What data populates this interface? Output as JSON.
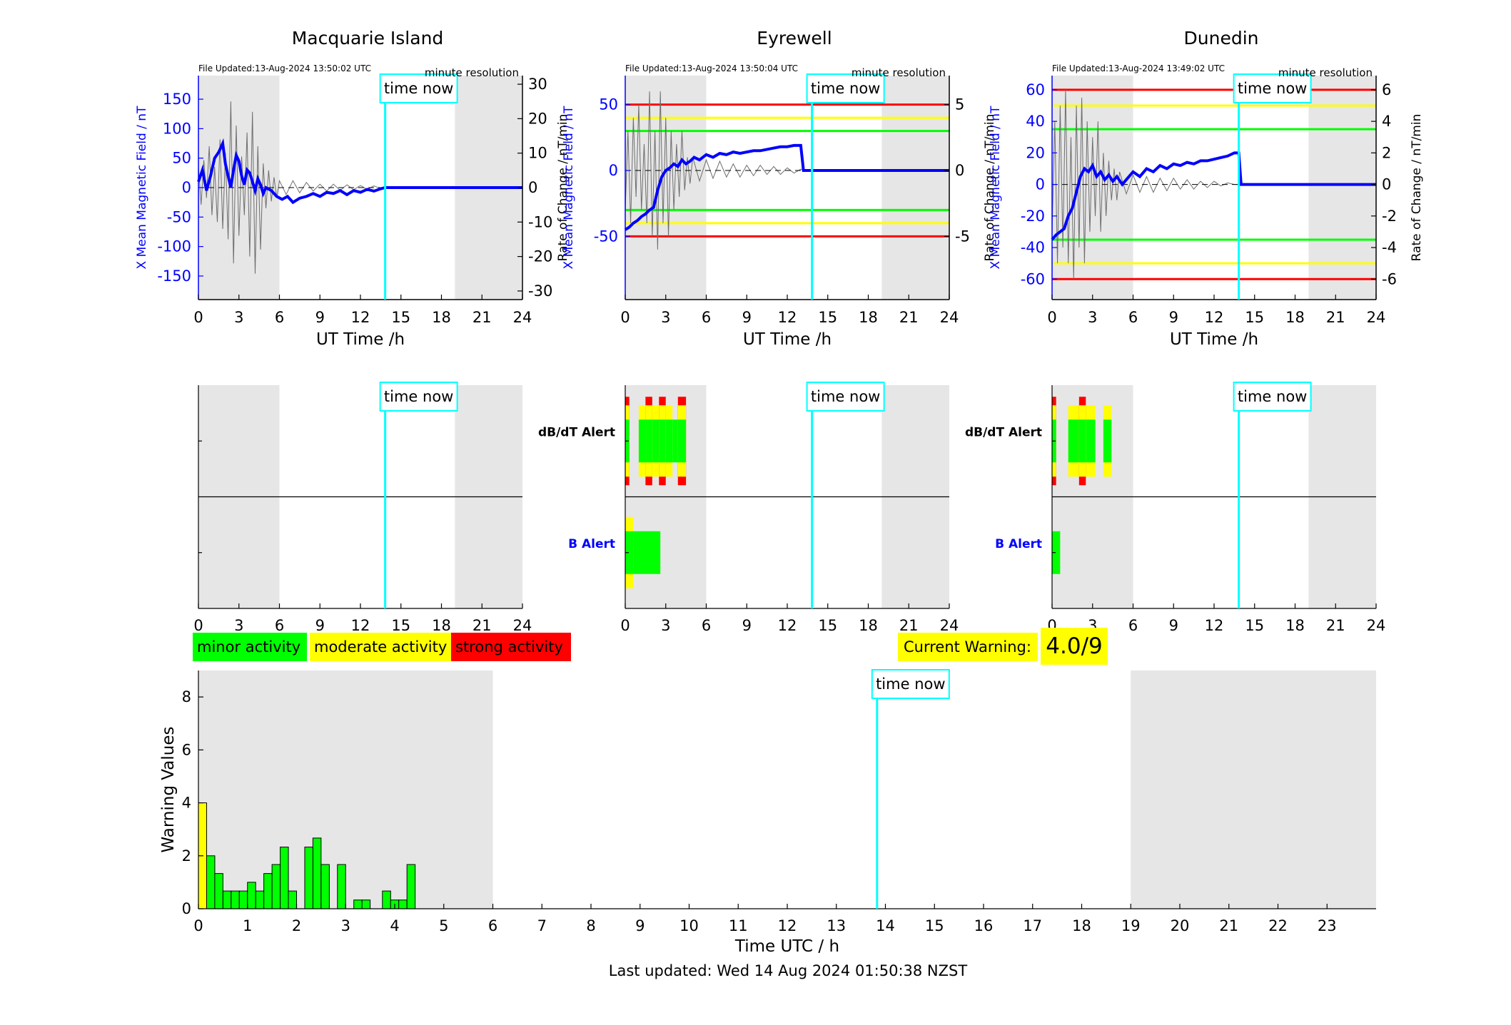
{
  "colors": {
    "field": "#0000ff",
    "rate": "#6e6e6e",
    "minor": "#00ff00",
    "moderate": "#ffff00",
    "strong": "#ff0000",
    "time_now": "#00ffff",
    "shade": "#e6e6e6"
  },
  "time_now_label": "time now",
  "legend": {
    "minor": "minor activity",
    "moderate": "moderate activity",
    "strong": "strong activity"
  },
  "current_warning": {
    "label": "Current Warning:",
    "value": "4.0/9"
  },
  "last_updated": "Last updated: Wed 14 Aug 2024 01:50:38 NZST",
  "chart_data": [
    {
      "type": "line",
      "title": "Macquarie Island",
      "file_updated": "File Updated:13-Aug-2024 13:50:02 UTC",
      "resolution": "minute resolution",
      "xlabel": "UT Time /h",
      "ylabel_left": "X Mean Magnetic Field / nT",
      "ylabel_right": "Rate of Change / nT/min",
      "xlim": [
        0,
        24
      ],
      "xticks": [
        0,
        3,
        6,
        9,
        12,
        15,
        18,
        21,
        24
      ],
      "ylim_left": [
        -190,
        190
      ],
      "yticks_left": [
        -150,
        -100,
        -50,
        0,
        50,
        100,
        150
      ],
      "ylim_right": [
        -32.5,
        32.5
      ],
      "yticks_right": [
        -30,
        -20,
        -10,
        0,
        10,
        20,
        30
      ],
      "time_now": 13.83,
      "night_shade": [
        [
          0,
          6
        ],
        [
          19,
          24
        ]
      ],
      "thresholds": [],
      "series": [
        {
          "name": "X Mean Magnetic Field",
          "x": [
            0,
            0.3,
            0.6,
            0.9,
            1.2,
            1.5,
            1.8,
            2.0,
            2.2,
            2.4,
            2.6,
            2.8,
            3.0,
            3.2,
            3.4,
            3.6,
            3.8,
            4.0,
            4.2,
            4.4,
            4.6,
            4.8,
            5.0,
            5.4,
            5.8,
            6.2,
            6.6,
            7.0,
            7.5,
            8.0,
            8.5,
            9.0,
            9.5,
            10.0,
            10.5,
            11.0,
            11.5,
            12.0,
            12.5,
            13.0,
            13.5,
            13.83,
            14,
            24
          ],
          "y": [
            10,
            30,
            -5,
            20,
            50,
            60,
            75,
            40,
            20,
            0,
            30,
            55,
            45,
            20,
            5,
            30,
            25,
            10,
            -5,
            15,
            5,
            -10,
            0,
            -5,
            -15,
            -20,
            -15,
            -25,
            -18,
            -15,
            -10,
            -15,
            -8,
            -10,
            -5,
            -12,
            -5,
            -8,
            -3,
            -6,
            -2,
            0,
            0,
            0
          ]
        },
        {
          "name": "Rate of Change",
          "x": [
            0,
            0.2,
            0.4,
            0.6,
            0.8,
            1.0,
            1.2,
            1.4,
            1.6,
            1.8,
            2.0,
            2.2,
            2.4,
            2.6,
            2.8,
            3.0,
            3.2,
            3.4,
            3.6,
            3.8,
            4.0,
            4.2,
            4.4,
            4.6,
            4.8,
            5.0,
            5.2,
            5.4,
            5.6,
            5.8,
            6.0,
            6.5,
            7.0,
            7.5,
            8.0,
            8.5,
            9.0,
            9.5,
            10.0,
            10.5,
            11.0,
            11.5,
            12.0,
            12.5,
            13.0,
            13.5,
            13.83
          ],
          "y": [
            6,
            -5,
            8,
            -3,
            12,
            -8,
            6,
            -10,
            14,
            -12,
            10,
            -15,
            25,
            -22,
            18,
            -14,
            9,
            -8,
            16,
            -20,
            22,
            -25,
            12,
            -18,
            7,
            -6,
            5,
            -4,
            3,
            -3,
            2,
            -2,
            2,
            -1.5,
            1.5,
            -1,
            1,
            -1,
            1,
            -0.8,
            0.8,
            -0.6,
            0.6,
            -0.5,
            0.5,
            -0.3,
            0
          ]
        }
      ]
    },
    {
      "type": "line",
      "title": "Eyrewell",
      "file_updated": "File Updated:13-Aug-2024 13:50:04 UTC",
      "resolution": "minute resolution",
      "xlabel": "UT Time /h",
      "ylabel_left": "X Mean Magnetic Field / nT",
      "ylabel_right": "Rate of Change / nT/min",
      "xlim": [
        0,
        24
      ],
      "xticks": [
        0,
        3,
        6,
        9,
        12,
        15,
        18,
        21,
        24
      ],
      "ylim_left": [
        -98,
        72
      ],
      "yticks_left": [
        -50,
        0,
        50
      ],
      "ylim_right": [
        -9.8,
        7.2
      ],
      "yticks_right": [
        -5,
        0,
        5
      ],
      "time_now": 13.83,
      "night_shade": [
        [
          0,
          6
        ],
        [
          19,
          24
        ]
      ],
      "thresholds": [
        {
          "value": 50,
          "color": "#ff0000"
        },
        {
          "value": 40,
          "color": "#ffff00"
        },
        {
          "value": 30,
          "color": "#00ff00"
        },
        {
          "value": -30,
          "color": "#00ff00"
        },
        {
          "value": -40,
          "color": "#ffff00"
        },
        {
          "value": -50,
          "color": "#ff0000"
        }
      ],
      "series": [
        {
          "name": "X Mean Magnetic Field",
          "x": [
            0,
            0.3,
            0.6,
            0.9,
            1.2,
            1.5,
            1.8,
            2.1,
            2.4,
            2.7,
            3.0,
            3.3,
            3.6,
            3.9,
            4.2,
            4.5,
            4.8,
            5.1,
            5.5,
            6.0,
            6.5,
            7.0,
            7.5,
            8.0,
            8.5,
            9.0,
            9.5,
            10.0,
            10.5,
            11.0,
            11.5,
            12.0,
            12.5,
            13.0,
            13.2,
            13.83,
            24
          ],
          "y": [
            -45,
            -43,
            -40,
            -38,
            -35,
            -33,
            -30,
            -28,
            -15,
            -5,
            0,
            2,
            5,
            3,
            8,
            5,
            7,
            10,
            8,
            12,
            10,
            13,
            12,
            14,
            13,
            14,
            15,
            15,
            16,
            17,
            18,
            18,
            19,
            19,
            0,
            0,
            0
          ]
        },
        {
          "name": "Rate of Change",
          "x": [
            0,
            0.2,
            0.4,
            0.6,
            0.8,
            1.0,
            1.2,
            1.4,
            1.6,
            1.8,
            2.0,
            2.2,
            2.4,
            2.6,
            2.8,
            3.0,
            3.2,
            3.4,
            3.6,
            3.8,
            4.0,
            4.2,
            4.4,
            4.6,
            4.8,
            5.0,
            5.5,
            6.0,
            6.5,
            7.0,
            7.5,
            8.0,
            8.5,
            9.0,
            9.5,
            10.0,
            10.5,
            11.0,
            11.5,
            12.0,
            12.5,
            13.0,
            13.2
          ],
          "y": [
            -3,
            3,
            -4,
            4,
            -2,
            5,
            -3,
            2,
            -4,
            6,
            -5,
            3,
            -6,
            6,
            -4,
            4,
            -5,
            3,
            -3,
            2,
            -2,
            3,
            -1.5,
            1,
            -1,
            1,
            -0.8,
            0.8,
            -0.6,
            0.7,
            -0.5,
            0.5,
            -0.5,
            0.4,
            -0.4,
            0.4,
            -0.3,
            0.3,
            -0.3,
            0.2,
            -0.2,
            0.1,
            0
          ]
        }
      ]
    },
    {
      "type": "line",
      "title": "Dunedin",
      "file_updated": "File Updated:13-Aug-2024 13:49:02 UTC",
      "resolution": "minute resolution",
      "xlabel": "UT Time /h",
      "ylabel_left": "X Mean Magnetic Field / nT",
      "ylabel_right": "Rate of Change / nT/min",
      "xlim": [
        0,
        24
      ],
      "xticks": [
        0,
        3,
        6,
        9,
        12,
        15,
        18,
        21,
        24
      ],
      "ylim_left": [
        -73,
        69
      ],
      "yticks_left": [
        -60,
        -40,
        -20,
        0,
        20,
        40,
        60
      ],
      "ylim_right": [
        -7.3,
        6.9
      ],
      "yticks_right": [
        -6,
        -4,
        -2,
        0,
        2,
        4,
        6
      ],
      "time_now": 13.83,
      "night_shade": [
        [
          0,
          6
        ],
        [
          19,
          24
        ]
      ],
      "thresholds": [
        {
          "value": 60,
          "color": "#ff0000"
        },
        {
          "value": 50,
          "color": "#ffff00"
        },
        {
          "value": 35,
          "color": "#00ff00"
        },
        {
          "value": -35,
          "color": "#00ff00"
        },
        {
          "value": -50,
          "color": "#ffff00"
        },
        {
          "value": -60,
          "color": "#ff0000"
        }
      ],
      "series": [
        {
          "name": "X Mean Magnetic Field",
          "x": [
            0,
            0.3,
            0.6,
            0.9,
            1.2,
            1.5,
            1.8,
            2.1,
            2.4,
            2.7,
            3.0,
            3.3,
            3.6,
            3.9,
            4.2,
            4.5,
            4.8,
            5.2,
            5.6,
            6.0,
            6.5,
            7.0,
            7.5,
            8.0,
            8.5,
            9.0,
            9.5,
            10.0,
            10.5,
            11.0,
            11.5,
            12.0,
            12.5,
            13.0,
            13.5,
            13.83,
            14,
            24
          ],
          "y": [
            -35,
            -32,
            -30,
            -28,
            -20,
            -15,
            -5,
            5,
            10,
            8,
            12,
            5,
            8,
            3,
            6,
            2,
            5,
            0,
            4,
            8,
            5,
            10,
            8,
            12,
            10,
            13,
            12,
            14,
            13,
            15,
            15,
            16,
            17,
            18,
            20,
            20,
            0,
            0
          ]
        },
        {
          "name": "Rate of Change",
          "x": [
            0,
            0.2,
            0.4,
            0.6,
            0.8,
            1.0,
            1.2,
            1.4,
            1.6,
            1.8,
            2.0,
            2.2,
            2.4,
            2.6,
            2.8,
            3.0,
            3.2,
            3.4,
            3.6,
            3.8,
            4.0,
            4.2,
            4.4,
            4.6,
            4.8,
            5.0,
            5.5,
            6.0,
            6.5,
            7.0,
            7.5,
            8.0,
            8.5,
            9.0,
            9.5,
            10.0,
            10.5,
            11.0,
            11.5,
            12.0,
            12.5,
            13.0,
            13.5,
            13.83
          ],
          "y": [
            -3,
            4,
            -5,
            5,
            -4,
            6,
            -5,
            3,
            -6,
            5,
            -4,
            5.5,
            -5,
            4,
            -3,
            3,
            -2,
            4,
            -3,
            2,
            -2,
            1.5,
            -1,
            1,
            -1,
            0.8,
            -0.6,
            0.6,
            -0.5,
            0.5,
            -0.5,
            0.4,
            -0.4,
            0.4,
            -0.3,
            0.3,
            -0.3,
            0.2,
            -0.2,
            0.2,
            -0.1,
            0.1,
            0,
            0
          ]
        }
      ]
    },
    {
      "type": "heatmap",
      "title": "",
      "xlim": [
        0,
        24
      ],
      "xticks": [
        0,
        3,
        6,
        9,
        12,
        15,
        18,
        21,
        24
      ],
      "row_labels": [],
      "time_now": 13.83,
      "night_shade": [
        [
          0,
          6
        ],
        [
          19,
          24
        ]
      ],
      "dbdt_bars": [],
      "b_bars": []
    },
    {
      "type": "heatmap",
      "title": "",
      "xlim": [
        0,
        24
      ],
      "xticks": [
        0,
        3,
        6,
        9,
        12,
        15,
        18,
        21,
        24
      ],
      "row_labels": [
        {
          "text": "dB/dT Alert",
          "color": "#000000"
        },
        {
          "text": "B Alert",
          "color": "#0000ff"
        }
      ],
      "time_now": 13.83,
      "night_shade": [
        [
          0,
          6
        ],
        [
          19,
          24
        ]
      ],
      "dbdt_bars": [
        {
          "x0": 0.0,
          "x1": 0.3,
          "level": 3
        },
        {
          "x0": 1.0,
          "x1": 1.5,
          "level": 2
        },
        {
          "x0": 1.5,
          "x1": 2.0,
          "level": 3
        },
        {
          "x0": 2.0,
          "x1": 2.5,
          "level": 2
        },
        {
          "x0": 2.5,
          "x1": 3.0,
          "level": 3
        },
        {
          "x0": 3.0,
          "x1": 3.5,
          "level": 2
        },
        {
          "x0": 3.5,
          "x1": 3.9,
          "level": 1
        },
        {
          "x0": 3.9,
          "x1": 4.5,
          "level": 3
        }
      ],
      "b_bars": [
        {
          "x0": 0.0,
          "x1": 0.6,
          "level": 2
        },
        {
          "x0": 0.6,
          "x1": 2.6,
          "level": 1
        }
      ]
    },
    {
      "type": "heatmap",
      "title": "",
      "xlim": [
        0,
        24
      ],
      "xticks": [
        0,
        3,
        6,
        9,
        12,
        15,
        18,
        21,
        24
      ],
      "row_labels": [
        {
          "text": "dB/dT Alert",
          "color": "#000000"
        },
        {
          "text": "B Alert",
          "color": "#0000ff"
        }
      ],
      "time_now": 13.83,
      "night_shade": [
        [
          0,
          6
        ],
        [
          19,
          24
        ]
      ],
      "dbdt_bars": [
        {
          "x0": 0.0,
          "x1": 0.3,
          "level": 3
        },
        {
          "x0": 1.2,
          "x1": 2.0,
          "level": 2
        },
        {
          "x0": 2.0,
          "x1": 2.5,
          "level": 3
        },
        {
          "x0": 2.5,
          "x1": 3.2,
          "level": 2
        },
        {
          "x0": 3.8,
          "x1": 4.4,
          "level": 2
        }
      ],
      "b_bars": [
        {
          "x0": 0.0,
          "x1": 0.6,
          "level": 1
        }
      ]
    },
    {
      "type": "bar",
      "title": "",
      "xlabel": "Time UTC / h",
      "ylabel": "Warning Values",
      "xlim": [
        0,
        24
      ],
      "xticks": [
        0,
        1,
        2,
        3,
        4,
        5,
        6,
        7,
        8,
        9,
        10,
        11,
        12,
        13,
        14,
        15,
        16,
        17,
        18,
        19,
        20,
        21,
        22,
        23
      ],
      "ylim": [
        0,
        9
      ],
      "yticks": [
        0,
        2,
        4,
        6,
        8
      ],
      "time_now": 13.83,
      "night_shade": [
        [
          0,
          6
        ],
        [
          19,
          24
        ]
      ],
      "bar_width": 0.1667,
      "x": [
        0.0,
        0.167,
        0.333,
        0.5,
        0.667,
        0.833,
        1.0,
        1.167,
        1.333,
        1.5,
        1.667,
        1.833,
        2.167,
        2.333,
        2.5,
        2.833,
        3.167,
        3.333,
        3.75,
        3.917,
        4.083,
        4.25
      ],
      "values": [
        4.0,
        2.0,
        1.33,
        0.67,
        0.67,
        0.67,
        1.0,
        0.67,
        1.33,
        1.67,
        2.33,
        0.67,
        2.33,
        2.67,
        1.67,
        1.67,
        0.33,
        0.33,
        0.67,
        0.33,
        0.33,
        1.67
      ],
      "levels": [
        2,
        1,
        1,
        1,
        1,
        1,
        1,
        1,
        1,
        1,
        1,
        1,
        1,
        1,
        1,
        1,
        1,
        1,
        1,
        1,
        1,
        1
      ]
    }
  ]
}
